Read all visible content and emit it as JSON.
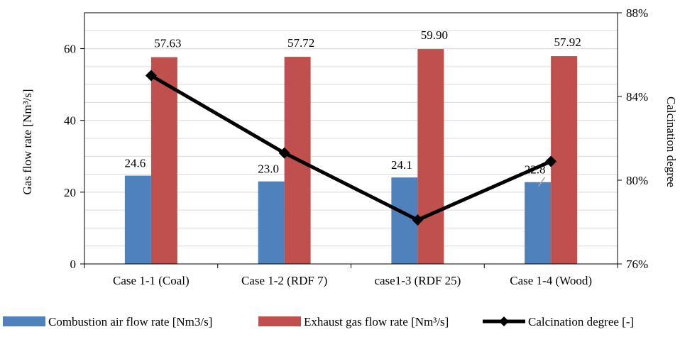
{
  "chart_data": {
    "type": "bar",
    "categories": [
      "Case 1-1 (Coal)",
      "Case 1-2 (RDF 7)",
      "case1-3 (RDF 25)",
      "Case 1-4 (Wood)"
    ],
    "series": [
      {
        "name": "Combustion air flow rate [Nm3/s]",
        "type": "bar",
        "axis": "left",
        "color": "#4F81BD",
        "values": [
          24.6,
          23.0,
          24.1,
          22.8
        ],
        "labels": [
          "24.6",
          "23.0",
          "24.1",
          "22.8"
        ]
      },
      {
        "name": "Exhaust gas flow rate [Nm³/s]",
        "type": "bar",
        "axis": "left",
        "color": "#C0504D",
        "values": [
          57.63,
          57.72,
          59.9,
          57.92
        ],
        "labels": [
          "57.63",
          "57.72",
          "59.90",
          "57.92"
        ]
      },
      {
        "name": "Calcination degree [-]",
        "type": "line",
        "axis": "right",
        "color": "#000000",
        "marker": "diamond",
        "values": [
          0.85,
          0.813,
          0.781,
          0.809
        ]
      }
    ],
    "ylabel": "Gas flow rate [Nm³/s]",
    "y2label": "Calcination degree",
    "ylim": [
      0,
      70
    ],
    "yticks": [
      "0",
      "20",
      "40",
      "60"
    ],
    "y2lim": [
      0.76,
      0.88
    ],
    "y2ticks": [
      "76%",
      "80%",
      "84%",
      "88%"
    ],
    "grid": true,
    "legend_position": "bottom"
  }
}
